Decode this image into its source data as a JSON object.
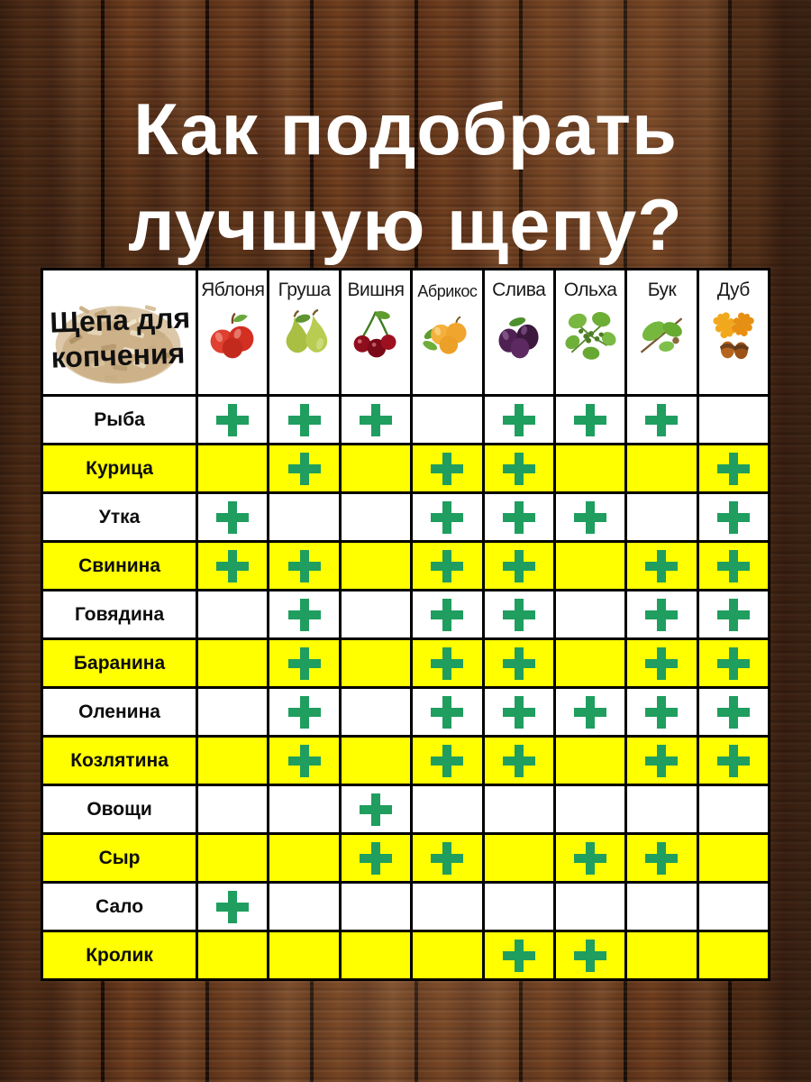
{
  "title": {
    "line1": "Как подобрать",
    "line2": "лучшую щепу?"
  },
  "table": {
    "corner": {
      "line1": "Щепа для",
      "line2": "копчения",
      "icon": "wood-chips-icon"
    },
    "mark_symbol": "+"
  },
  "chart_data": {
    "type": "table",
    "title": "Как подобрать лучшую щепу?",
    "corner_header": "Щепа для копчения",
    "columns": [
      "Яблоня",
      "Груша",
      "Вишня",
      "Абрикос",
      "Слива",
      "Ольха",
      "Бук",
      "Дуб"
    ],
    "column_icons": [
      "apple-icon",
      "pear-icon",
      "cherry-icon",
      "apricot-icon",
      "plum-icon",
      "alder-icon",
      "beech-icon",
      "oak-icon"
    ],
    "rows": [
      {
        "label": "Рыба",
        "marks": [
          1,
          1,
          1,
          0,
          1,
          1,
          1,
          0
        ]
      },
      {
        "label": "Курица",
        "marks": [
          0,
          1,
          0,
          1,
          1,
          0,
          0,
          1
        ]
      },
      {
        "label": "Утка",
        "marks": [
          1,
          0,
          0,
          1,
          1,
          1,
          0,
          1
        ]
      },
      {
        "label": "Свинина",
        "marks": [
          1,
          1,
          0,
          1,
          1,
          0,
          1,
          1
        ]
      },
      {
        "label": "Говядина",
        "marks": [
          0,
          1,
          0,
          1,
          1,
          0,
          1,
          1
        ]
      },
      {
        "label": "Баранина",
        "marks": [
          0,
          1,
          0,
          1,
          1,
          0,
          1,
          1
        ]
      },
      {
        "label": "Оленина",
        "marks": [
          0,
          1,
          0,
          1,
          1,
          1,
          1,
          1
        ]
      },
      {
        "label": "Козлятина",
        "marks": [
          0,
          1,
          0,
          1,
          1,
          0,
          1,
          1
        ]
      },
      {
        "label": "Овощи",
        "marks": [
          0,
          0,
          1,
          0,
          0,
          0,
          0,
          0
        ]
      },
      {
        "label": "Сыр",
        "marks": [
          0,
          0,
          1,
          1,
          0,
          1,
          1,
          0
        ]
      },
      {
        "label": "Сало",
        "marks": [
          1,
          0,
          0,
          0,
          0,
          0,
          0,
          0
        ]
      },
      {
        "label": "Кролик",
        "marks": [
          0,
          0,
          0,
          0,
          1,
          1,
          0,
          0
        ]
      }
    ]
  },
  "colors": {
    "row_highlight": "#ffff00",
    "row_default": "#ffffff",
    "mark_green": "#1f9e5f",
    "border": "#000000",
    "title_text": "#ffffff"
  }
}
